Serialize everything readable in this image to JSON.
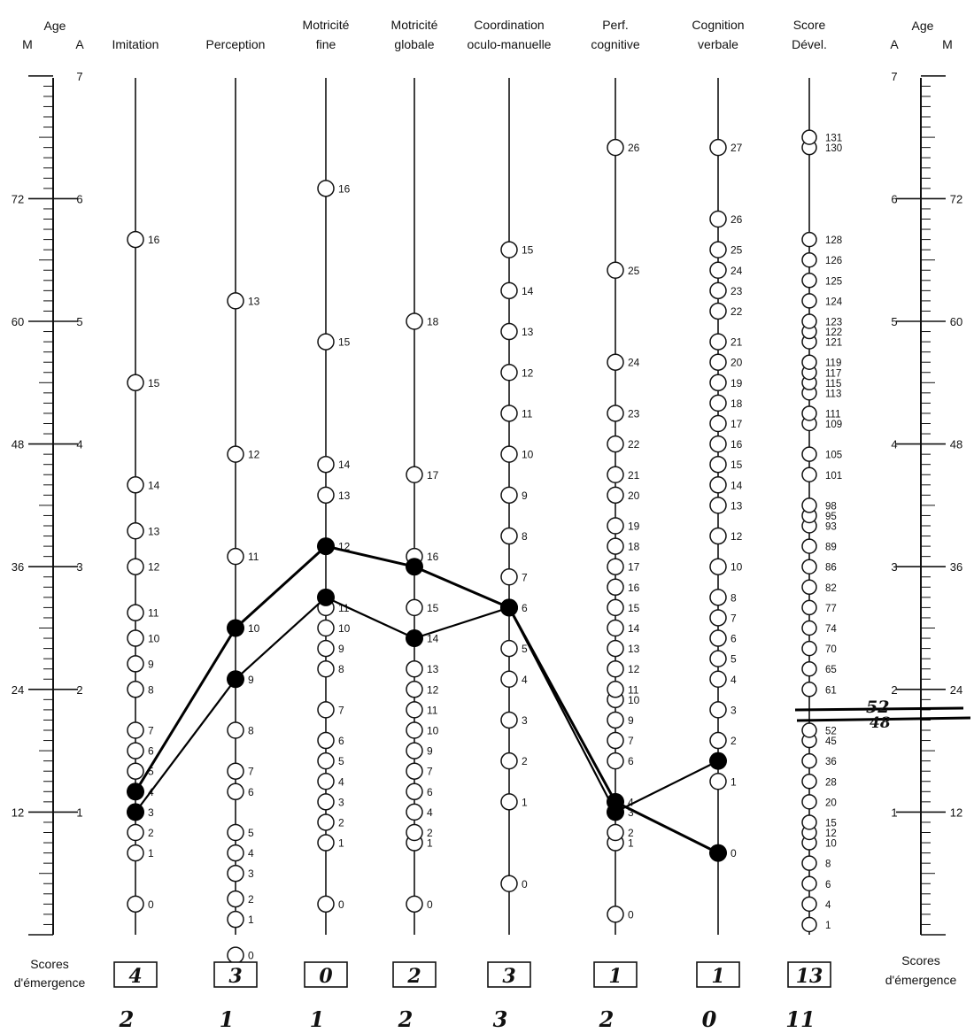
{
  "chart_data": {
    "type": "line",
    "age_axis": {
      "label": "Age",
      "left_sublabels": [
        "M",
        "A"
      ],
      "right_sublabels": [
        "A",
        "M"
      ],
      "years": [
        1,
        2,
        3,
        4,
        5,
        6,
        7
      ],
      "months": [
        12,
        24,
        36,
        48,
        60,
        72
      ],
      "range_months": [
        0,
        84
      ]
    },
    "columns": [
      {
        "key": "imitation",
        "title": [
          "Imitation"
        ],
        "scale": [
          [
            0,
            3
          ],
          [
            1,
            8
          ],
          [
            2,
            10
          ],
          [
            3,
            12
          ],
          [
            4,
            14
          ],
          [
            5,
            16
          ],
          [
            6,
            18
          ],
          [
            7,
            20
          ],
          [
            8,
            24
          ],
          [
            9,
            26.5
          ],
          [
            10,
            29
          ],
          [
            11,
            31.5
          ],
          [
            12,
            36
          ],
          [
            13,
            39.5
          ],
          [
            14,
            44
          ],
          [
            15,
            54
          ],
          [
            16,
            68
          ]
        ]
      },
      {
        "key": "perception",
        "title": [
          "Perception"
        ],
        "scale": [
          [
            0,
            -2
          ],
          [
            1,
            1.5
          ],
          [
            2,
            3.5
          ],
          [
            3,
            6
          ],
          [
            4,
            8
          ],
          [
            5,
            10
          ],
          [
            6,
            14
          ],
          [
            7,
            16
          ],
          [
            8,
            20
          ],
          [
            9,
            25
          ],
          [
            10,
            30
          ],
          [
            11,
            37
          ],
          [
            12,
            47
          ],
          [
            13,
            62
          ]
        ]
      },
      {
        "key": "motricite_fine",
        "title": [
          "Motricité",
          "fine"
        ],
        "scale": [
          [
            0,
            3
          ],
          [
            1,
            9
          ],
          [
            2,
            11
          ],
          [
            3,
            13
          ],
          [
            4,
            15
          ],
          [
            5,
            17
          ],
          [
            6,
            19
          ],
          [
            7,
            22
          ],
          [
            8,
            26
          ],
          [
            9,
            28
          ],
          [
            10,
            30
          ],
          [
            11,
            32
          ],
          [
            12,
            38
          ],
          [
            13,
            43
          ],
          [
            14,
            46
          ],
          [
            15,
            58
          ],
          [
            16,
            73
          ]
        ]
      },
      {
        "key": "motricite_globale",
        "title": [
          "Motricité",
          "globale"
        ],
        "scale": [
          [
            0,
            3
          ],
          [
            1,
            9
          ],
          [
            2,
            10
          ],
          [
            4,
            12
          ],
          [
            6,
            14
          ],
          [
            7,
            16
          ],
          [
            9,
            18
          ],
          [
            10,
            20
          ],
          [
            11,
            22
          ],
          [
            12,
            24
          ],
          [
            13,
            26
          ],
          [
            14,
            29
          ],
          [
            15,
            32
          ],
          [
            16,
            37
          ],
          [
            17,
            45
          ],
          [
            18,
            60
          ]
        ]
      },
      {
        "key": "coordination",
        "title": [
          "Coordination",
          "oculo-manuelle"
        ],
        "scale": [
          [
            0,
            5
          ],
          [
            1,
            13
          ],
          [
            2,
            17
          ],
          [
            3,
            21
          ],
          [
            4,
            25
          ],
          [
            5,
            28
          ],
          [
            6,
            32
          ],
          [
            7,
            35
          ],
          [
            8,
            39
          ],
          [
            9,
            43
          ],
          [
            10,
            47
          ],
          [
            11,
            51
          ],
          [
            12,
            55
          ],
          [
            13,
            59
          ],
          [
            14,
            63
          ],
          [
            15,
            67
          ]
        ]
      },
      {
        "key": "perf_cognitive",
        "title": [
          "Perf.",
          "cognitive"
        ],
        "scale": [
          [
            0,
            2
          ],
          [
            1,
            9
          ],
          [
            2,
            10
          ],
          [
            3,
            12
          ],
          [
            4,
            13
          ],
          [
            6,
            17
          ],
          [
            7,
            19
          ],
          [
            9,
            21
          ],
          [
            10,
            23
          ],
          [
            11,
            24
          ],
          [
            12,
            26
          ],
          [
            13,
            28
          ],
          [
            14,
            30
          ],
          [
            15,
            32
          ],
          [
            16,
            34
          ],
          [
            17,
            36
          ],
          [
            18,
            38
          ],
          [
            19,
            40
          ],
          [
            20,
            43
          ],
          [
            21,
            45
          ],
          [
            22,
            48
          ],
          [
            23,
            51
          ],
          [
            24,
            56
          ],
          [
            25,
            65
          ],
          [
            26,
            77
          ]
        ]
      },
      {
        "key": "cognition_verbale",
        "title": [
          "Cognition",
          "verbale"
        ],
        "scale": [
          [
            0,
            8
          ],
          [
            1,
            15
          ],
          [
            2,
            19
          ],
          [
            3,
            22
          ],
          [
            4,
            25
          ],
          [
            5,
            27
          ],
          [
            6,
            29
          ],
          [
            7,
            31
          ],
          [
            8,
            33
          ],
          [
            10,
            36
          ],
          [
            12,
            39
          ],
          [
            13,
            42
          ],
          [
            14,
            44
          ],
          [
            15,
            46
          ],
          [
            16,
            48
          ],
          [
            17,
            50
          ],
          [
            18,
            52
          ],
          [
            19,
            54
          ],
          [
            20,
            56
          ],
          [
            21,
            58
          ],
          [
            22,
            61
          ],
          [
            23,
            63
          ],
          [
            24,
            65
          ],
          [
            25,
            67
          ],
          [
            26,
            70
          ],
          [
            27,
            77
          ]
        ]
      },
      {
        "key": "score_devel",
        "title": [
          "Score",
          "Dével."
        ],
        "scale": [
          [
            1,
            1
          ],
          [
            4,
            3
          ],
          [
            6,
            5
          ],
          [
            8,
            7
          ],
          [
            10,
            9
          ],
          [
            12,
            10
          ],
          [
            15,
            11
          ],
          [
            20,
            13
          ],
          [
            28,
            15
          ],
          [
            36,
            17
          ],
          [
            45,
            19
          ],
          [
            52,
            20
          ],
          [
            61,
            24
          ],
          [
            65,
            26
          ],
          [
            70,
            28
          ],
          [
            74,
            30
          ],
          [
            77,
            32
          ],
          [
            82,
            34
          ],
          [
            86,
            36
          ],
          [
            89,
            38
          ],
          [
            93,
            40
          ],
          [
            95,
            41
          ],
          [
            98,
            42
          ],
          [
            101,
            45
          ],
          [
            105,
            47
          ],
          [
            109,
            50
          ],
          [
            111,
            51
          ],
          [
            113,
            53
          ],
          [
            115,
            54
          ],
          [
            117,
            55
          ],
          [
            119,
            56
          ],
          [
            121,
            58
          ],
          [
            122,
            59
          ],
          [
            123,
            60
          ],
          [
            124,
            62
          ],
          [
            125,
            64
          ],
          [
            126,
            66
          ],
          [
            128,
            68
          ],
          [
            130,
            77
          ],
          [
            131,
            78
          ]
        ]
      }
    ],
    "series": [
      {
        "values": [
          4,
          10,
          12,
          16,
          6,
          4,
          0
        ],
        "ages_months": [
          14,
          30,
          38,
          36,
          32,
          13,
          8
        ]
      },
      {
        "values": [
          3,
          9,
          11,
          14,
          6,
          3,
          1
        ],
        "ages_months": [
          12,
          25,
          33,
          29,
          32,
          12,
          17
        ]
      }
    ],
    "score_marks": [
      "52",
      "48"
    ],
    "footer": {
      "label": [
        "Scores",
        "d'émergence"
      ],
      "boxed_scores": [
        "4",
        "3",
        "0",
        "2",
        "3",
        "1",
        "1",
        "13"
      ],
      "handwritten_scores": [
        "2",
        "1",
        "1",
        "2",
        "3",
        "2",
        "0",
        "11"
      ]
    }
  }
}
